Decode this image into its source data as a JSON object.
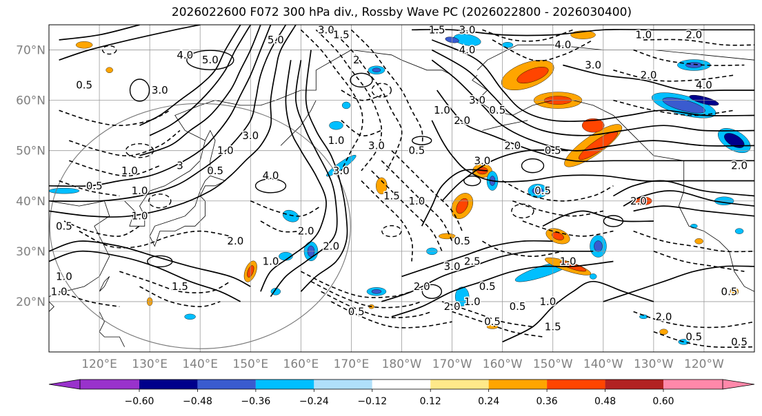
{
  "title": "2026022600 F072 300 hPa div., Rossby Wave PC (2026022800 - 2026030400)",
  "map": {
    "projection": "PlateCarree",
    "extent_lon": [
      110,
      250
    ],
    "extent_lat": [
      10,
      75
    ],
    "lat_ticks": [
      {
        "value": 70,
        "label": "70°N"
      },
      {
        "value": 60,
        "label": "60°N"
      },
      {
        "value": 50,
        "label": "50°N"
      },
      {
        "value": 40,
        "label": "40°N"
      },
      {
        "value": 30,
        "label": "30°N"
      },
      {
        "value": 20,
        "label": "20°N"
      }
    ],
    "lon_ticks": [
      {
        "value": 120,
        "label": "120°E"
      },
      {
        "value": 130,
        "label": "130°E"
      },
      {
        "value": 140,
        "label": "140°E"
      },
      {
        "value": 150,
        "label": "150°E"
      },
      {
        "value": 160,
        "label": "160°E"
      },
      {
        "value": 170,
        "label": "170°E"
      },
      {
        "value": 180,
        "label": "180°W"
      },
      {
        "value": 190,
        "label": "170°W"
      },
      {
        "value": 200,
        "label": "160°W"
      },
      {
        "value": 210,
        "label": "150°W"
      },
      {
        "value": 220,
        "label": "140°W"
      },
      {
        "value": 230,
        "label": "130°W"
      },
      {
        "value": 240,
        "label": "120°W"
      }
    ],
    "gridlines": true,
    "tick_label_color": "#808080"
  },
  "colorbar": {
    "position": "bottom",
    "extend": "both",
    "ticks": [
      "−0.60",
      "−0.48",
      "−0.36",
      "−0.24",
      "−0.12",
      "0.12",
      "0.24",
      "0.36",
      "0.48",
      "0.60"
    ],
    "colors": [
      "#9932cc",
      "#00008b",
      "#3a5bcf",
      "#00bfff",
      "#b0e0fa",
      "#ffffff",
      "#ffe98a",
      "#ffa500",
      "#ff4500",
      "#b22222",
      "#ff88aa"
    ]
  },
  "contour_labels": [
    {
      "text": "5.0",
      "lon": 142,
      "lat": 68
    },
    {
      "text": "4.0",
      "lon": 137,
      "lat": 69
    },
    {
      "text": "5.0",
      "lon": 155,
      "lat": 72
    },
    {
      "text": "3.0",
      "lon": 132,
      "lat": 62
    },
    {
      "text": "0.5",
      "lon": 117,
      "lat": 63
    },
    {
      "text": "3.0",
      "lon": 165,
      "lat": 74
    },
    {
      "text": "1.5",
      "lon": 168,
      "lat": 73
    },
    {
      "text": "2",
      "lon": 171,
      "lat": 68
    },
    {
      "text": "1.5",
      "lon": 187,
      "lat": 74
    },
    {
      "text": "3.0",
      "lon": 193,
      "lat": 74
    },
    {
      "text": "4.0",
      "lon": 193,
      "lat": 70
    },
    {
      "text": "4.0",
      "lon": 212,
      "lat": 71
    },
    {
      "text": "1.0",
      "lon": 228,
      "lat": 73
    },
    {
      "text": "2.0",
      "lon": 238,
      "lat": 73
    },
    {
      "text": "3.0",
      "lon": 218,
      "lat": 67
    },
    {
      "text": "2.0",
      "lon": 229,
      "lat": 65
    },
    {
      "text": "4.0",
      "lon": 240,
      "lat": 63
    },
    {
      "text": "1.0",
      "lon": 188,
      "lat": 58
    },
    {
      "text": "2.0",
      "lon": 192,
      "lat": 56
    },
    {
      "text": "3.0",
      "lon": 195,
      "lat": 60
    },
    {
      "text": "0.5",
      "lon": 199,
      "lat": 58
    },
    {
      "text": "3.0",
      "lon": 196,
      "lat": 48
    },
    {
      "text": "2.0",
      "lon": 202,
      "lat": 51
    },
    {
      "text": "0.5",
      "lon": 210,
      "lat": 50
    },
    {
      "text": "0.5",
      "lon": 183,
      "lat": 50
    },
    {
      "text": "3.0",
      "lon": 175,
      "lat": 51
    },
    {
      "text": "1.0",
      "lon": 167,
      "lat": 52
    },
    {
      "text": "3.0",
      "lon": 150,
      "lat": 53
    },
    {
      "text": "1.0",
      "lon": 145,
      "lat": 50
    },
    {
      "text": "4.0",
      "lon": 154,
      "lat": 45
    },
    {
      "text": "3.0",
      "lon": 168,
      "lat": 46
    },
    {
      "text": "0.5",
      "lon": 143,
      "lat": 46
    },
    {
      "text": "3",
      "lon": 136,
      "lat": 47
    },
    {
      "text": "1.0",
      "lon": 126,
      "lat": 46
    },
    {
      "text": "0.5",
      "lon": 119,
      "lat": 43
    },
    {
      "text": "1.0",
      "lon": 128,
      "lat": 42
    },
    {
      "text": "0.5",
      "lon": 113,
      "lat": 35
    },
    {
      "text": "1.0",
      "lon": 128,
      "lat": 37
    },
    {
      "text": "2.0",
      "lon": 147,
      "lat": 32
    },
    {
      "text": "2.0",
      "lon": 161,
      "lat": 34
    },
    {
      "text": "1.0",
      "lon": 154,
      "lat": 28
    },
    {
      "text": "1.5",
      "lon": 136,
      "lat": 23
    },
    {
      "text": "1.0",
      "lon": 113,
      "lat": 25
    },
    {
      "text": "1.0",
      "lon": 112,
      "lat": 22
    },
    {
      "text": "2.0",
      "lon": 166,
      "lat": 31
    },
    {
      "text": "1.5",
      "lon": 178,
      "lat": 41
    },
    {
      "text": "1.0",
      "lon": 183,
      "lat": 40
    },
    {
      "text": "0.5",
      "lon": 208,
      "lat": 42
    },
    {
      "text": "2.0",
      "lon": 227,
      "lat": 40
    },
    {
      "text": "0.5",
      "lon": 192,
      "lat": 32
    },
    {
      "text": "3.0",
      "lon": 190,
      "lat": 27
    },
    {
      "text": "2.5",
      "lon": 194,
      "lat": 28
    },
    {
      "text": "1.0",
      "lon": 213,
      "lat": 28
    },
    {
      "text": "2.0",
      "lon": 184,
      "lat": 23
    },
    {
      "text": "0.5",
      "lon": 197,
      "lat": 23
    },
    {
      "text": "1.0",
      "lon": 194,
      "lat": 20
    },
    {
      "text": "0.5",
      "lon": 198,
      "lat": 16
    },
    {
      "text": "2.0",
      "lon": 190,
      "lat": 19
    },
    {
      "text": "0.5",
      "lon": 171,
      "lat": 18
    },
    {
      "text": "0.5",
      "lon": 203,
      "lat": 19
    },
    {
      "text": "1.0",
      "lon": 209,
      "lat": 20
    },
    {
      "text": "1.5",
      "lon": 210,
      "lat": 15
    },
    {
      "text": "0.5",
      "lon": 245,
      "lat": 22
    },
    {
      "text": "2.0",
      "lon": 232,
      "lat": 17
    },
    {
      "text": "0.5",
      "lon": 238,
      "lat": 13
    },
    {
      "text": "0.5",
      "lon": 247,
      "lat": 12
    },
    {
      "text": "2.0",
      "lon": 247,
      "lat": 47
    }
  ]
}
